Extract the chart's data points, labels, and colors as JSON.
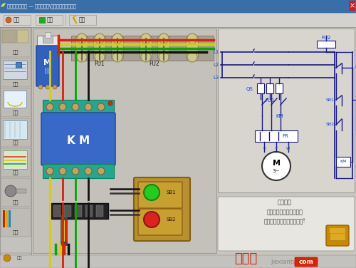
{
  "title_bar_text": "电工技能与实训 — 电动机控制\\过对载保护达标控制",
  "title_bg": "#3a6ea8",
  "main_bg": "#c8c8c8",
  "panel_bg": "#d0cec8",
  "left_panel_bg": "#c0bdb8",
  "schematic_bg": "#d8d6d0",
  "sidebar_bg": "#c4c2be",
  "toolbar_bg": "#d4d2ce",
  "bottom_bg": "#c8c6c2",
  "wire_red": "#dd2200",
  "wire_yellow": "#ddcc00",
  "wire_green": "#00aa00",
  "wire_black": "#111111",
  "sch_line": "#1a1a88",
  "sch_text": "#1144cc",
  "info_bg": "#e8e6e0",
  "watermark_color": "#cc2200",
  "brand_bg": "#dd2200",
  "sidebar_labels": [
    "器材",
    "电路",
    "测量",
    "布局",
    "连线",
    "运行",
    "排版"
  ],
  "bottom_text1": "将鼠标放到原理图中器件",
  "bottom_text2": "符号上查看器件名称和作用!",
  "bottom_label": "操作提示",
  "watermark": "接线图",
  "w2": "jiexiantu",
  "w3": "com"
}
